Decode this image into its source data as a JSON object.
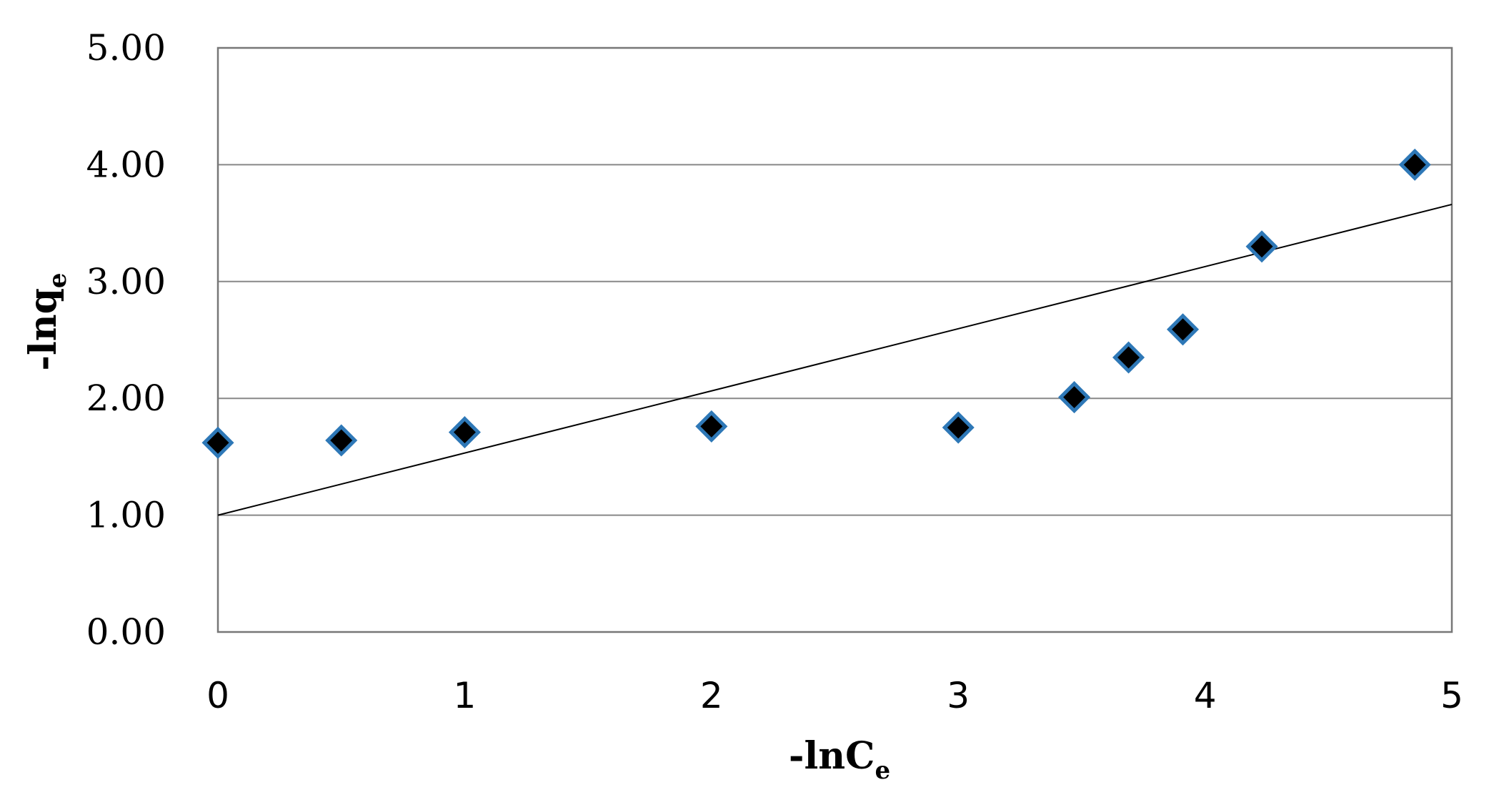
{
  "chart_data": {
    "type": "scatter",
    "title": "",
    "xlabel": {
      "main": "-lnC",
      "sub": "e"
    },
    "ylabel": {
      "main": "-lnq",
      "sub": "e"
    },
    "xlim": [
      0,
      5
    ],
    "ylim": [
      0,
      5
    ],
    "x_ticks": [
      "0",
      "1",
      "2",
      "3",
      "4",
      "5"
    ],
    "y_ticks": [
      "0.00",
      "1.00",
      "2.00",
      "3.00",
      "4.00",
      "5.00"
    ],
    "grid": "horizontal",
    "legend": "none",
    "series": [
      {
        "points": [
          {
            "x": 0.0,
            "y": 1.62
          },
          {
            "x": 0.5,
            "y": 1.64
          },
          {
            "x": 1.0,
            "y": 1.71
          },
          {
            "x": 2.0,
            "y": 1.76
          },
          {
            "x": 3.0,
            "y": 1.75
          },
          {
            "x": 3.47,
            "y": 2.01
          },
          {
            "x": 3.69,
            "y": 2.35
          },
          {
            "x": 3.91,
            "y": 2.59
          },
          {
            "x": 4.23,
            "y": 3.3
          },
          {
            "x": 4.85,
            "y": 4.0
          }
        ],
        "marker": "diamond",
        "marker_fill": "#000000",
        "marker_edge": "#2e78b7"
      }
    ],
    "trendline": {
      "x": [
        0,
        5
      ],
      "y": [
        1.0,
        3.66
      ],
      "color": "#000000"
    }
  }
}
